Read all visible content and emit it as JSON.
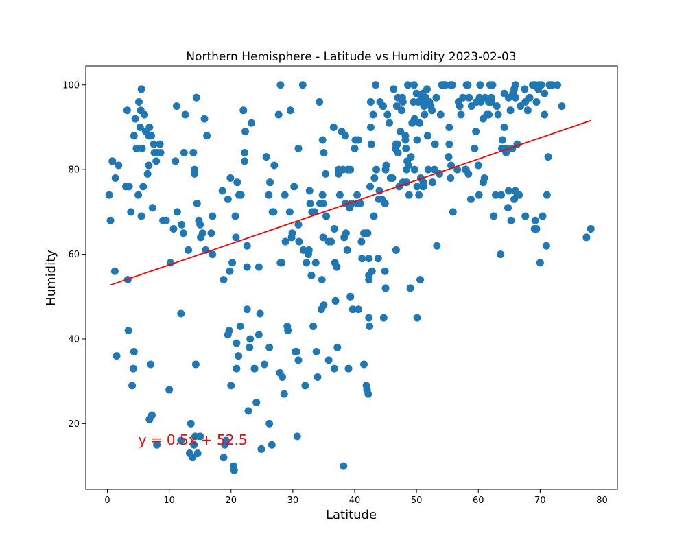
{
  "chart_data": {
    "type": "scatter",
    "title": "Northern Hemisphere - Latitude vs Humidity 2023-02-03",
    "xlabel": "Latitude",
    "ylabel": "Humidity",
    "xlim": [
      -3.5,
      82.5
    ],
    "ylim": [
      4.5,
      104.5
    ],
    "xticks": [
      0,
      10,
      20,
      30,
      40,
      50,
      60,
      70,
      80
    ],
    "yticks": [
      20,
      40,
      60,
      80,
      100
    ],
    "grid": false,
    "point_color": "#1f77b4",
    "line_color": "#ff0000",
    "annotation": {
      "text": "y = 0.5x + 52.5",
      "x": 5,
      "y": 15
    },
    "regression": {
      "slope": 0.5,
      "intercept": 52.5,
      "x_range": [
        0.5,
        78.2
      ]
    },
    "points": [
      [
        0.3,
        74
      ],
      [
        0.5,
        68
      ],
      [
        0.8,
        82
      ],
      [
        1.2,
        56
      ],
      [
        1.3,
        78
      ],
      [
        1.5,
        36
      ],
      [
        1.8,
        81
      ],
      [
        3.2,
        94
      ],
      [
        3.0,
        76
      ],
      [
        3.3,
        54
      ],
      [
        3.4,
        42
      ],
      [
        3.8,
        70
      ],
      [
        4.0,
        29
      ],
      [
        4.2,
        33
      ],
      [
        4.3,
        37
      ],
      [
        4.3,
        88
      ],
      [
        4.5,
        92
      ],
      [
        4.7,
        85
      ],
      [
        5.0,
        74
      ],
      [
        5.1,
        96
      ],
      [
        5.3,
        90
      ],
      [
        5.4,
        94
      ],
      [
        5.5,
        99
      ],
      [
        5.5,
        69
      ],
      [
        5.6,
        85
      ],
      [
        5.8,
        76
      ],
      [
        6.0,
        93
      ],
      [
        6.2,
        89
      ],
      [
        6.5,
        79
      ],
      [
        6.7,
        81
      ],
      [
        6.7,
        88
      ],
      [
        6.8,
        90
      ],
      [
        6.8,
        21
      ],
      [
        7.0,
        34
      ],
      [
        7.1,
        88
      ],
      [
        7.2,
        22
      ],
      [
        7.3,
        71
      ],
      [
        7.5,
        86
      ],
      [
        7.6,
        84
      ],
      [
        7.9,
        82
      ],
      [
        8.0,
        15
      ],
      [
        8.5,
        86
      ],
      [
        8.6,
        84
      ],
      [
        9.5,
        68
      ],
      [
        10.0,
        28
      ],
      [
        10.2,
        58
      ],
      [
        10.7,
        66
      ],
      [
        11.0,
        82
      ],
      [
        11.2,
        95
      ],
      [
        11.3,
        70
      ],
      [
        11.9,
        16
      ],
      [
        11.9,
        46
      ],
      [
        12.0,
        67
      ],
      [
        12.3,
        65
      ],
      [
        12.4,
        84
      ],
      [
        12.6,
        93
      ],
      [
        13.1,
        61
      ],
      [
        13.3,
        13
      ],
      [
        13.5,
        20
      ],
      [
        13.8,
        12
      ],
      [
        13.9,
        84
      ],
      [
        14.0,
        15
      ],
      [
        14.1,
        80
      ],
      [
        14.1,
        79
      ],
      [
        14.2,
        17
      ],
      [
        14.3,
        34
      ],
      [
        14.4,
        97
      ],
      [
        14.5,
        72
      ],
      [
        14.6,
        13
      ],
      [
        14.8,
        68
      ],
      [
        15.0,
        17
      ],
      [
        15.0,
        67
      ],
      [
        15.1,
        64
      ],
      [
        15.7,
        92
      ],
      [
        15.9,
        61
      ],
      [
        16.1,
        88
      ],
      [
        16.8,
        65
      ],
      [
        17.0,
        60
      ],
      [
        17.0,
        69
      ],
      [
        18.6,
        75
      ],
      [
        18.8,
        54
      ],
      [
        18.8,
        12
      ],
      [
        19.0,
        15
      ],
      [
        19.2,
        16
      ],
      [
        19.5,
        41
      ],
      [
        19.5,
        73
      ],
      [
        19.7,
        42
      ],
      [
        19.8,
        56
      ],
      [
        19.9,
        78
      ],
      [
        20.0,
        29
      ],
      [
        20.2,
        58
      ],
      [
        20.4,
        10
      ],
      [
        20.5,
        9
      ],
      [
        20.7,
        69
      ],
      [
        20.8,
        64
      ],
      [
        20.9,
        39
      ],
      [
        20.9,
        33
      ],
      [
        21.0,
        77
      ],
      [
        21.2,
        36
      ],
      [
        21.3,
        74
      ],
      [
        21.5,
        43
      ],
      [
        22.0,
        94
      ],
      [
        22.2,
        84
      ],
      [
        22.2,
        82
      ],
      [
        22.3,
        89
      ],
      [
        22.6,
        57
      ],
      [
        22.6,
        62
      ],
      [
        22.6,
        47
      ],
      [
        22.8,
        23
      ],
      [
        23.0,
        38
      ],
      [
        23.1,
        40
      ],
      [
        23.3,
        91
      ],
      [
        23.8,
        33
      ],
      [
        24.1,
        25
      ],
      [
        24.5,
        41
      ],
      [
        24.5,
        57
      ],
      [
        24.7,
        46
      ],
      [
        24.9,
        14
      ],
      [
        25.4,
        34
      ],
      [
        25.7,
        83
      ],
      [
        26.1,
        74
      ],
      [
        26.2,
        20
      ],
      [
        26.2,
        38
      ],
      [
        26.3,
        77
      ],
      [
        26.6,
        15
      ],
      [
        26.7,
        70
      ],
      [
        27.0,
        81
      ],
      [
        27.7,
        93
      ],
      [
        27.9,
        32
      ],
      [
        28.0,
        58
      ],
      [
        28.0,
        100
      ],
      [
        28.2,
        58
      ],
      [
        28.3,
        31
      ],
      [
        28.6,
        27
      ],
      [
        28.7,
        74
      ],
      [
        28.8,
        63
      ],
      [
        29.1,
        43
      ],
      [
        29.2,
        42
      ],
      [
        29.5,
        70
      ],
      [
        29.6,
        94
      ],
      [
        29.8,
        64
      ],
      [
        29.9,
        65
      ],
      [
        30.2,
        76
      ],
      [
        30.4,
        37
      ],
      [
        30.6,
        37
      ],
      [
        30.7,
        17
      ],
      [
        30.9,
        67
      ],
      [
        30.9,
        85
      ],
      [
        30.9,
        35
      ],
      [
        31.0,
        63
      ],
      [
        31.6,
        100
      ],
      [
        31.7,
        61
      ],
      [
        32.0,
        29
      ],
      [
        32.2,
        58
      ],
      [
        32.5,
        60
      ],
      [
        32.6,
        61
      ],
      [
        32.7,
        75
      ],
      [
        32.8,
        72
      ],
      [
        33.0,
        55
      ],
      [
        33.3,
        43
      ],
      [
        33.5,
        70
      ],
      [
        33.7,
        58
      ],
      [
        33.8,
        37
      ],
      [
        34.0,
        31
      ],
      [
        34.3,
        96
      ],
      [
        34.4,
        72
      ],
      [
        34.6,
        47
      ],
      [
        34.7,
        54
      ],
      [
        34.8,
        74
      ],
      [
        34.8,
        87
      ],
      [
        34.9,
        64
      ],
      [
        34.9,
        72
      ],
      [
        35.0,
        84
      ],
      [
        35.0,
        48
      ],
      [
        35.3,
        79
      ],
      [
        35.4,
        69
      ],
      [
        35.8,
        35
      ],
      [
        35.8,
        63
      ],
      [
        36.6,
        90
      ],
      [
        36.7,
        66
      ],
      [
        36.7,
        33
      ],
      [
        36.8,
        58
      ],
      [
        36.9,
        49
      ],
      [
        37.1,
        57
      ],
      [
        37.2,
        38
      ],
      [
        37.4,
        80
      ],
      [
        37.4,
        79
      ],
      [
        37.6,
        74
      ],
      [
        37.9,
        89
      ],
      [
        38.1,
        80
      ],
      [
        38.2,
        10
      ],
      [
        38.3,
        64
      ],
      [
        38.5,
        72
      ],
      [
        38.5,
        88
      ],
      [
        38.6,
        65
      ],
      [
        38.8,
        61
      ],
      [
        38.9,
        80
      ],
      [
        39.0,
        33
      ],
      [
        39.2,
        71
      ],
      [
        39.3,
        50
      ],
      [
        39.3,
        80
      ],
      [
        39.5,
        72
      ],
      [
        39.7,
        47
      ],
      [
        40.0,
        85
      ],
      [
        40.1,
        87
      ],
      [
        40.4,
        74
      ],
      [
        40.6,
        87
      ],
      [
        40.6,
        47
      ],
      [
        40.9,
        72
      ],
      [
        41.1,
        63
      ],
      [
        41.2,
        59
      ],
      [
        41.5,
        34
      ],
      [
        41.5,
        65
      ],
      [
        41.9,
        65
      ],
      [
        41.9,
        29
      ],
      [
        42.0,
        28
      ],
      [
        42.1,
        65
      ],
      [
        42.2,
        27
      ],
      [
        42.3,
        55
      ],
      [
        42.3,
        59
      ],
      [
        42.3,
        45
      ],
      [
        42.3,
        54
      ],
      [
        42.4,
        43
      ],
      [
        42.5,
        76
      ],
      [
        42.6,
        96
      ],
      [
        42.6,
        90
      ],
      [
        42.7,
        86
      ],
      [
        42.8,
        56
      ],
      [
        43.0,
        93
      ],
      [
        43.1,
        69
      ],
      [
        43.2,
        78
      ],
      [
        43.4,
        100
      ],
      [
        43.5,
        80
      ],
      [
        43.8,
        59
      ],
      [
        43.9,
        73
      ],
      [
        44.0,
        75
      ],
      [
        44.1,
        96
      ],
      [
        44.4,
        73
      ],
      [
        44.6,
        95
      ],
      [
        44.7,
        45
      ],
      [
        44.9,
        72
      ],
      [
        44.9,
        56
      ],
      [
        45.0,
        52
      ],
      [
        45.0,
        80
      ],
      [
        45.1,
        81
      ],
      [
        45.3,
        93
      ],
      [
        45.6,
        91
      ],
      [
        45.8,
        78
      ],
      [
        46.1,
        78
      ],
      [
        46.3,
        99
      ],
      [
        46.6,
        85
      ],
      [
        46.7,
        86
      ],
      [
        46.7,
        61
      ],
      [
        46.8,
        95
      ],
      [
        46.9,
        86
      ],
      [
        47.0,
        97
      ],
      [
        47.0,
        84
      ],
      [
        47.2,
        76
      ],
      [
        47.4,
        89
      ],
      [
        47.6,
        94
      ],
      [
        47.8,
        96
      ],
      [
        47.8,
        77
      ],
      [
        48.2,
        88
      ],
      [
        48.2,
        87
      ],
      [
        48.3,
        85
      ],
      [
        48.4,
        80
      ],
      [
        48.4,
        77
      ],
      [
        48.5,
        82
      ],
      [
        48.6,
        100
      ],
      [
        48.7,
        81
      ],
      [
        48.8,
        74
      ],
      [
        49.0,
        52
      ],
      [
        49.1,
        83
      ],
      [
        49.3,
        91
      ],
      [
        49.5,
        96
      ],
      [
        49.6,
        100
      ],
      [
        49.7,
        80
      ],
      [
        49.7,
        92
      ],
      [
        50.0,
        98
      ],
      [
        50.1,
        76
      ],
      [
        50.1,
        45
      ],
      [
        50.1,
        87
      ],
      [
        50.3,
        96
      ],
      [
        50.4,
        74
      ],
      [
        50.5,
        91
      ],
      [
        50.6,
        54
      ],
      [
        50.7,
        78
      ],
      [
        50.8,
        97
      ],
      [
        50.9,
        96
      ],
      [
        51.0,
        98
      ],
      [
        51.1,
        77
      ],
      [
        51.1,
        76
      ],
      [
        51.2,
        95
      ],
      [
        51.3,
        93
      ],
      [
        51.5,
        97
      ],
      [
        51.7,
        99
      ],
      [
        51.8,
        88
      ],
      [
        51.9,
        80
      ],
      [
        52.1,
        96
      ],
      [
        52.3,
        95
      ],
      [
        52.5,
        94
      ],
      [
        52.6,
        77
      ],
      [
        52.9,
        80
      ],
      [
        53.0,
        86
      ],
      [
        53.2,
        97
      ],
      [
        53.3,
        62
      ],
      [
        53.7,
        79
      ],
      [
        53.9,
        93
      ],
      [
        54.1,
        100
      ],
      [
        54.4,
        100
      ],
      [
        54.5,
        100
      ],
      [
        54.7,
        100
      ],
      [
        55.2,
        83
      ],
      [
        55.3,
        90
      ],
      [
        55.3,
        86
      ],
      [
        55.5,
        78
      ],
      [
        55.5,
        100
      ],
      [
        55.6,
        81
      ],
      [
        55.8,
        100
      ],
      [
        55.9,
        70
      ],
      [
        56.6,
        80
      ],
      [
        56.8,
        96
      ],
      [
        57.0,
        95
      ],
      [
        57.2,
        93
      ],
      [
        57.5,
        97
      ],
      [
        57.9,
        80
      ],
      [
        58.0,
        80
      ],
      [
        58.1,
        100
      ],
      [
        58.3,
        100
      ],
      [
        58.4,
        79
      ],
      [
        58.5,
        97
      ],
      [
        58.8,
        73
      ],
      [
        58.9,
        95
      ],
      [
        59.4,
        85
      ],
      [
        59.6,
        89
      ],
      [
        59.7,
        96
      ],
      [
        60.0,
        81
      ],
      [
        60.2,
        97
      ],
      [
        60.3,
        100
      ],
      [
        60.4,
        96
      ],
      [
        60.8,
        77
      ],
      [
        60.8,
        92
      ],
      [
        61.0,
        78
      ],
      [
        61.1,
        97
      ],
      [
        61.4,
        93
      ],
      [
        61.7,
        96
      ],
      [
        61.7,
        93
      ],
      [
        61.9,
        100
      ],
      [
        62.1,
        97
      ],
      [
        62.1,
        96
      ],
      [
        62.3,
        100
      ],
      [
        62.5,
        69
      ],
      [
        62.8,
        74
      ],
      [
        63.0,
        95
      ],
      [
        63.2,
        93
      ],
      [
        63.6,
        60
      ],
      [
        63.7,
        74
      ],
      [
        63.8,
        85
      ],
      [
        63.9,
        87
      ],
      [
        64.2,
        98
      ],
      [
        64.2,
        90
      ],
      [
        64.5,
        84
      ],
      [
        64.6,
        85
      ],
      [
        64.8,
        71
      ],
      [
        64.9,
        97
      ],
      [
        64.9,
        75
      ],
      [
        65.2,
        94
      ],
      [
        65.3,
        68
      ],
      [
        65.5,
        85
      ],
      [
        65.6,
        98
      ],
      [
        65.8,
        73
      ],
      [
        65.8,
        99
      ],
      [
        66.0,
        100
      ],
      [
        66.0,
        97
      ],
      [
        66.0,
        75
      ],
      [
        66.3,
        86
      ],
      [
        66.3,
        74
      ],
      [
        66.8,
        95
      ],
      [
        67.5,
        99
      ],
      [
        67.6,
        69
      ],
      [
        67.6,
        96
      ],
      [
        68.0,
        94
      ],
      [
        68.3,
        97
      ],
      [
        68.8,
        100
      ],
      [
        69.1,
        66
      ],
      [
        69.2,
        68
      ],
      [
        69.2,
        100
      ],
      [
        69.4,
        66
      ],
      [
        69.7,
        99
      ],
      [
        69.8,
        100
      ],
      [
        70.0,
        58
      ],
      [
        70.2,
        100
      ],
      [
        70.4,
        69
      ],
      [
        70.7,
        98
      ],
      [
        70.7,
        93
      ],
      [
        71.0,
        62
      ],
      [
        71.1,
        74
      ],
      [
        71.3,
        83
      ],
      [
        71.5,
        100
      ],
      [
        71.7,
        100
      ],
      [
        72.0,
        100
      ],
      [
        72.8,
        100
      ],
      [
        73.5,
        95
      ],
      [
        77.5,
        64
      ],
      [
        78.2,
        66
      ],
      [
        69.4,
        96
      ],
      [
        66.6,
        74
      ],
      [
        60.1,
        74
      ],
      [
        57.2,
        93
      ],
      [
        52.0,
        96
      ],
      [
        47.7,
        97
      ],
      [
        44.6,
        95
      ],
      [
        40.5,
        72
      ],
      [
        36.2,
        63
      ],
      [
        33.1,
        70
      ],
      [
        26.9,
        70
      ],
      [
        21.6,
        74
      ],
      [
        15.4,
        65
      ],
      [
        9.0,
        68
      ],
      [
        3.5,
        76
      ],
      [
        8.1,
        84
      ],
      [
        11.0,
        82
      ]
    ]
  }
}
